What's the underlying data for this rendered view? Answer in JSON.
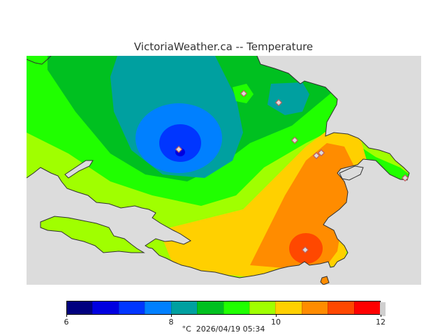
{
  "title": "VictoriaWeather.ca -- Temperature",
  "map": {
    "colors": {
      "water": "#dcdcdc",
      "t_6_65": "#00007f",
      "t_65_7": "#0000e0",
      "t_7_75": "#0036ff",
      "t_75_8": "#0080ff",
      "t_8_85": "#00a0a0",
      "t_85_9": "#00c020",
      "t_9_95": "#20ff00",
      "t_95_10": "#a0ff00",
      "t_10_105": "#ffd000",
      "t_105_11": "#ff8c00",
      "t_11_115": "#ff4800",
      "t_115_12": "#ff0000",
      "coast": "#303030",
      "station": "#c06060"
    }
  },
  "legend": {
    "bins": [
      {
        "from": 6.0,
        "to": 6.5,
        "color": "#00007f"
      },
      {
        "from": 6.5,
        "to": 7.0,
        "color": "#0000e0"
      },
      {
        "from": 7.0,
        "to": 7.5,
        "color": "#0036ff"
      },
      {
        "from": 7.5,
        "to": 8.0,
        "color": "#0080ff"
      },
      {
        "from": 8.0,
        "to": 8.5,
        "color": "#00a0a0"
      },
      {
        "from": 8.5,
        "to": 9.0,
        "color": "#00c020"
      },
      {
        "from": 9.0,
        "to": 9.5,
        "color": "#20ff00"
      },
      {
        "from": 9.5,
        "to": 10.0,
        "color": "#a0ff00"
      },
      {
        "from": 10.0,
        "to": 10.5,
        "color": "#ffd000"
      },
      {
        "from": 10.5,
        "to": 11.0,
        "color": "#ff8c00"
      },
      {
        "from": 11.0,
        "to": 11.5,
        "color": "#ff4800"
      },
      {
        "from": 11.5,
        "to": 12.0,
        "color": "#ff0000"
      }
    ],
    "labels": [
      "6",
      "8",
      "10",
      "12"
    ],
    "range": [
      6,
      12
    ]
  },
  "footer": {
    "unit": "°C",
    "timestamp": "2026/04/19 05:34"
  }
}
